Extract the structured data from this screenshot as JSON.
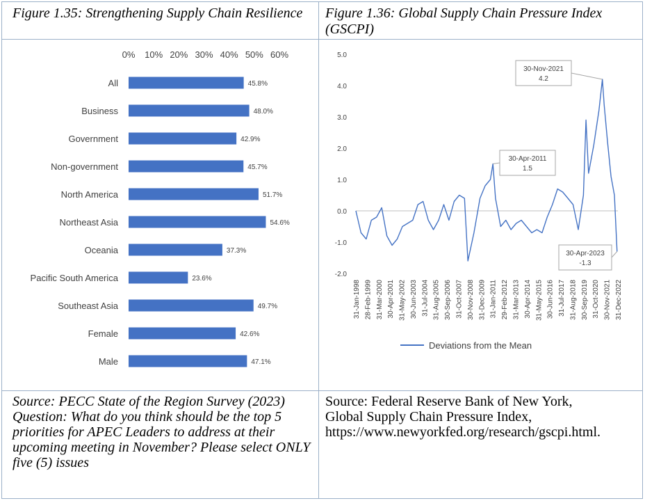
{
  "left_panel": {
    "title": "Figure 1.35: Strengthening Supply Chain Resilience",
    "source": "Source: PECC State of the Region Survey (2023)",
    "question": "Question: What do you think should be the top 5 priorities for APEC Leaders to address at their upcoming meeting in November?  Please select ONLY five (5) issues"
  },
  "right_panel": {
    "title": "Figure 1.36: Global Supply Chain Pressure Index (GSCPI)",
    "source_lines": [
      "Source: Federal Reserve Bank of New York,",
      "Global Supply Chain Pressure Index,",
      "https://www.newyorkfed.org/research/gscpi.html."
    ]
  },
  "chart_data": [
    {
      "type": "bar",
      "orientation": "horizontal",
      "categories": [
        "All",
        "Business",
        "Government",
        "Non-government",
        "North America",
        "Northeast Asia",
        "Oceania",
        "Pacific South America",
        "Southeast Asia",
        "Female",
        "Male"
      ],
      "values": [
        45.8,
        48.0,
        42.9,
        45.7,
        51.7,
        54.6,
        37.3,
        23.6,
        49.7,
        42.6,
        47.1
      ],
      "value_labels": [
        "45.8%",
        "48.0%",
        "42.9%",
        "45.7%",
        "51.7%",
        "54.6%",
        "37.3%",
        "23.6%",
        "49.7%",
        "42.6%",
        "47.1%"
      ],
      "xlim": [
        0,
        60
      ],
      "x_ticks": [
        0,
        10,
        20,
        30,
        40,
        50,
        60
      ],
      "x_tick_labels": [
        "0%",
        "10%",
        "20%",
        "30%",
        "40%",
        "50%",
        "60%"
      ],
      "axis_position": "top",
      "grid": false,
      "color": "#4472c4"
    },
    {
      "type": "line",
      "series": [
        {
          "name": "Deviations from the Mean",
          "color": "#4472c4",
          "x": [
            "1998-01",
            "1998-07",
            "1999-01",
            "1999-07",
            "2000-01",
            "2000-07",
            "2001-01",
            "2001-07",
            "2002-01",
            "2002-07",
            "2003-01",
            "2003-07",
            "2004-01",
            "2004-07",
            "2005-01",
            "2005-07",
            "2006-01",
            "2006-07",
            "2007-01",
            "2007-07",
            "2008-01",
            "2008-07",
            "2008-11",
            "2009-06",
            "2010-01",
            "2010-07",
            "2011-01",
            "2011-04",
            "2011-07",
            "2012-01",
            "2012-07",
            "2013-01",
            "2013-07",
            "2014-01",
            "2014-07",
            "2015-01",
            "2015-07",
            "2016-01",
            "2016-07",
            "2017-01",
            "2017-07",
            "2018-01",
            "2018-07",
            "2019-01",
            "2019-07",
            "2020-01",
            "2020-04",
            "2020-07",
            "2021-01",
            "2021-07",
            "2021-11",
            "2022-01",
            "2022-05",
            "2022-09",
            "2023-01",
            "2023-04"
          ],
          "y": [
            0.0,
            -0.7,
            -0.9,
            -0.3,
            -0.2,
            0.1,
            -0.8,
            -1.1,
            -0.9,
            -0.5,
            -0.4,
            -0.3,
            0.2,
            0.3,
            -0.3,
            -0.6,
            -0.3,
            0.2,
            -0.3,
            0.3,
            0.5,
            0.4,
            -1.6,
            -0.7,
            0.4,
            0.8,
            1.0,
            1.5,
            0.4,
            -0.5,
            -0.3,
            -0.6,
            -0.4,
            -0.3,
            -0.5,
            -0.7,
            -0.6,
            -0.7,
            -0.2,
            0.2,
            0.7,
            0.6,
            0.4,
            0.2,
            -0.6,
            0.5,
            2.9,
            1.2,
            2.1,
            3.2,
            4.2,
            3.4,
            2.2,
            1.1,
            0.5,
            -1.3
          ]
        }
      ],
      "ylim": [
        -2.0,
        5.0
      ],
      "y_ticks": [
        -2.0,
        -1.0,
        0.0,
        1.0,
        2.0,
        3.0,
        4.0,
        5.0
      ],
      "y_tick_labels": [
        "-2.0",
        "-1.0",
        "0.0",
        "1.0",
        "2.0",
        "3.0",
        "4.0",
        "5.0"
      ],
      "x_tick_labels": [
        "31-Jan-1998",
        "28-Feb-1999",
        "31-Mar-2000",
        "30-Apr-2001",
        "31-May-2002",
        "30-Jun-2003",
        "31-Jul-2004",
        "31-Aug-2005",
        "30-Sep-2006",
        "31-Oct-2007",
        "30-Nov-2008",
        "31-Dec-2009",
        "31-Jan-2011",
        "29-Feb-2012",
        "31-Mar-2013",
        "30-Apr-2014",
        "31-May-2015",
        "30-Jun-2016",
        "31-Jul-2017",
        "31-Aug-2018",
        "30-Sep-2019",
        "31-Oct-2020",
        "30-Nov-2021",
        "31-Dec-2022"
      ],
      "annotations": [
        {
          "date": "30-Nov-2021",
          "value": "4.2"
        },
        {
          "date": "30-Apr-2011",
          "value": "1.5"
        },
        {
          "date": "30-Apr-2023",
          "value": "-1.3"
        }
      ],
      "legend": "bottom",
      "grid": false
    }
  ]
}
